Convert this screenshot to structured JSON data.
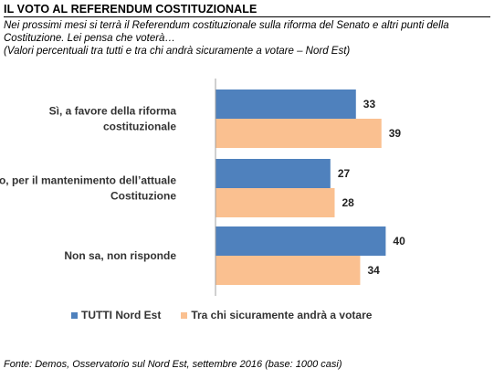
{
  "header": {
    "title": "IL VOTO AL REFERENDUM COSTITUZIONALE",
    "subtitle_lines": [
      "Nei prossimi mesi si terrà il Referendum costituzionale sulla riforma del Senato e altri punti della",
      "Costituzione. Lei pensa che voterà…",
      "(Valori percentuali tra tutti e tra chi andrà sicuramente a votare – Nord Est)"
    ]
  },
  "chart_data": {
    "type": "bar",
    "orientation": "horizontal",
    "categories": [
      [
        "Sì, a favore della riforma",
        "costituzionale"
      ],
      [
        "No, per il mantenimento dell’attuale",
        "Costituzione"
      ],
      [
        "Non sa, non risponde"
      ]
    ],
    "series": [
      {
        "name": "TUTTI Nord Est",
        "values": [
          33,
          27,
          40
        ],
        "color": "#4f81bd"
      },
      {
        "name": "Tra chi sicuramente andrà a votare",
        "values": [
          39,
          28,
          34
        ],
        "color": "#fac090"
      }
    ],
    "xlim": [
      0,
      100
    ],
    "grid": false,
    "legend_position": "bottom"
  },
  "footer": {
    "source": "Fonte: Demos, Osservatorio sul Nord Est, settembre  2016 (base: 1000 casi)"
  }
}
